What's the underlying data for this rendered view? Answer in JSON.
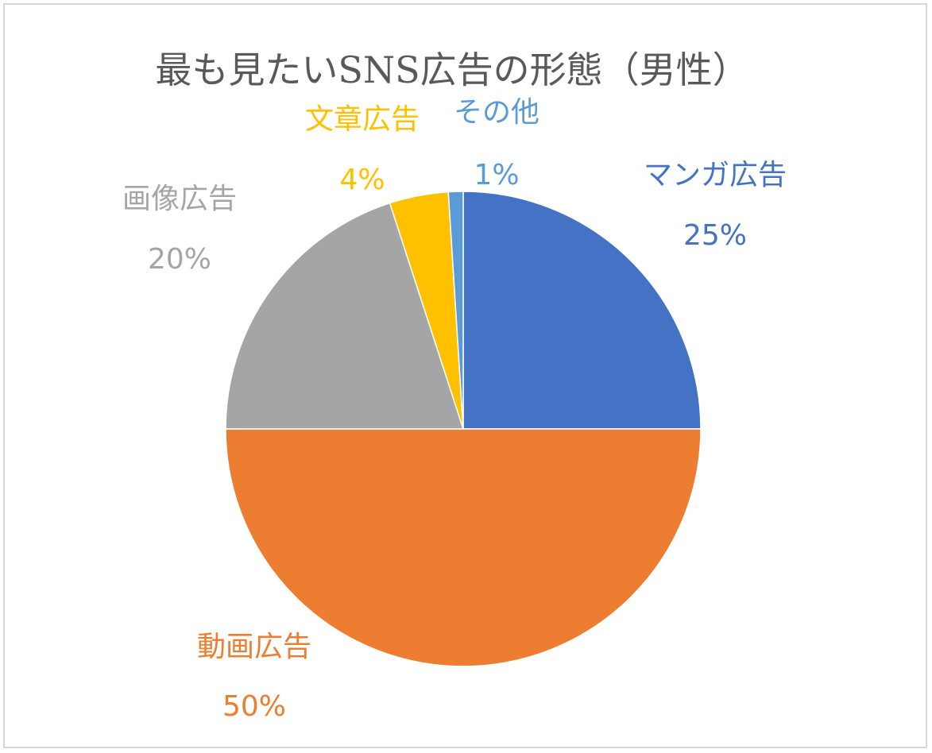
{
  "chart_data": {
    "type": "pie",
    "title": "最も見たいSNS広告の形態（男性）",
    "slices": [
      {
        "label": "マンガ広告",
        "value": 25,
        "value_label": "25%",
        "color": "#4472C4"
      },
      {
        "label": "動画広告",
        "value": 50,
        "value_label": "50%",
        "color": "#ED7D31"
      },
      {
        "label": "画像広告",
        "value": 20,
        "value_label": "20%",
        "color": "#A5A5A5"
      },
      {
        "label": "文章広告",
        "value": 4,
        "value_label": "4%",
        "color": "#FFC000"
      },
      {
        "label": "その他",
        "value": 1,
        "value_label": "1%",
        "color": "#5B9BD5"
      }
    ],
    "start_angle": "12 o'clock",
    "direction": "clockwise",
    "legend": "none",
    "data_labels": "category name and percentage"
  }
}
